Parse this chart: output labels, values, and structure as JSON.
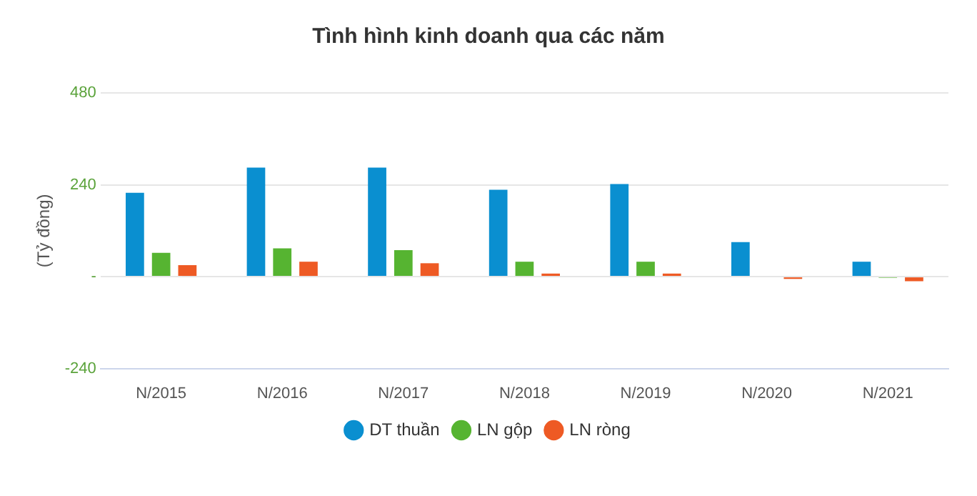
{
  "chart_data": {
    "type": "bar",
    "title": "Tình hình kinh doanh qua các năm",
    "ylabel": "(Tỷ đồng)",
    "categories": [
      "N/2015",
      "N/2016",
      "N/2017",
      "N/2018",
      "N/2019",
      "N/2020",
      "N/2021"
    ],
    "series": [
      {
        "name": "DT thuần",
        "color": "#0a8fd0",
        "values": [
          219,
          285,
          285,
          227,
          242,
          90,
          39
        ]
      },
      {
        "name": "LN gộp",
        "color": "#56b431",
        "values": [
          62,
          74,
          69,
          39,
          39,
          null,
          -3
        ]
      },
      {
        "name": "LN ròng",
        "color": "#ee5a24",
        "values": [
          30,
          39,
          35,
          8,
          8,
          -6,
          -12
        ]
      }
    ],
    "ylim": [
      -240,
      480
    ],
    "yticks": [
      -240,
      {
        "value": 0,
        "label": "-"
      },
      240,
      480
    ],
    "grid": "y",
    "legend": "bottom"
  }
}
